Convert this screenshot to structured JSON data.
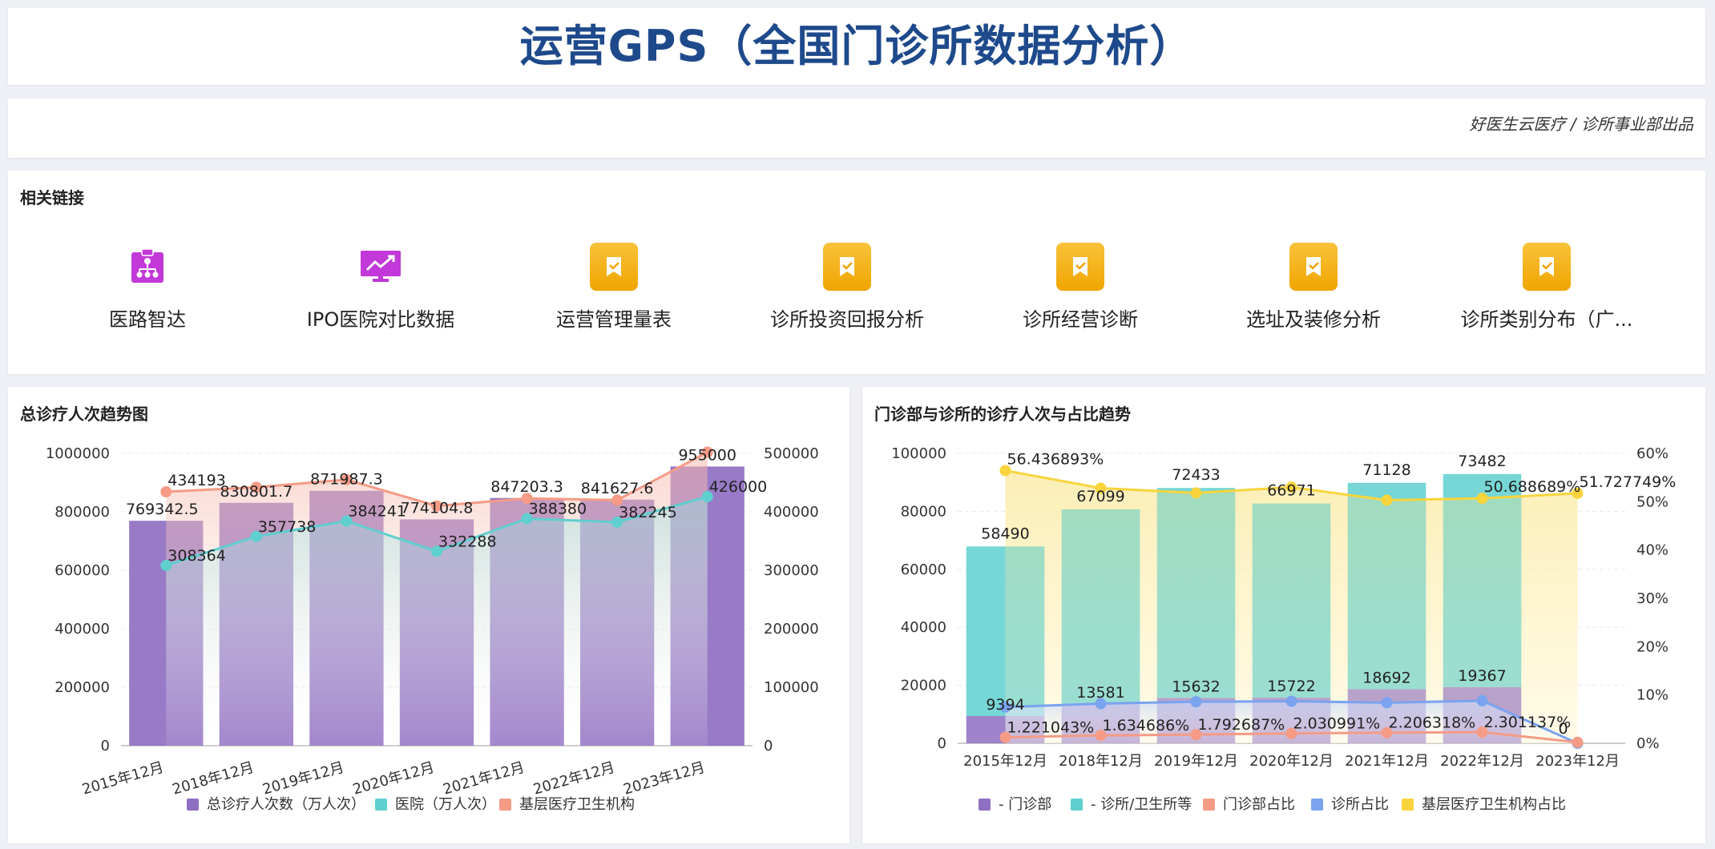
{
  "header": {
    "title": "运营GPS（全国门诊所数据分析）"
  },
  "subheader": {
    "credit": "好医生云医疗 / 诊所事业部出品"
  },
  "links": {
    "title": "相关链接",
    "items": [
      {
        "label": "医路智达",
        "icon": "org-chart-icon",
        "color": "#c238d8"
      },
      {
        "label": "IPO医院对比数据",
        "icon": "trend-monitor-icon",
        "color": "#c238d8"
      },
      {
        "label": "运营管理量表",
        "icon": "bookmark-check-icon",
        "color": "#f0a500"
      },
      {
        "label": "诊所投资回报分析",
        "icon": "bookmark-check-icon",
        "color": "#f0a500"
      },
      {
        "label": "诊所经营诊断",
        "icon": "bookmark-check-icon",
        "color": "#f0a500"
      },
      {
        "label": "选址及装修分析",
        "icon": "bookmark-check-icon",
        "color": "#f0a500"
      },
      {
        "label": "诊所类别分布（广...",
        "icon": "bookmark-check-icon",
        "color": "#f0a500"
      }
    ]
  },
  "chart_data": [
    {
      "type": "bar",
      "title": "总诊疗人次趋势图",
      "categories": [
        "2015年12月",
        "2018年12月",
        "2019年12月",
        "2020年12月",
        "2021年12月",
        "2022年12月",
        "2023年12月"
      ],
      "left_axis": {
        "ylim": [
          0,
          1000000
        ],
        "ticks": [
          "0",
          "200000",
          "400000",
          "600000",
          "800000",
          "1000000"
        ]
      },
      "right_axis": {
        "ylim": [
          0,
          500000
        ],
        "ticks": [
          "0",
          "100000",
          "200000",
          "300000",
          "400000",
          "500000"
        ]
      },
      "series": [
        {
          "name": "总诊疗人次数（万人次）",
          "kind": "bar",
          "axis": "left",
          "color": "#8f6fc2",
          "values": [
            769342.5,
            830801.7,
            871987.3,
            774104.8,
            847203.3,
            841627.6,
            955000
          ],
          "labels": [
            "769342.5",
            "830801.7",
            "871987.3",
            "774104.8",
            "847203.3",
            "841627.6",
            "955000"
          ]
        },
        {
          "name": "医院（万人次）",
          "kind": "line",
          "axis": "right",
          "color": "#5fcfcf",
          "values": [
            308364,
            357738,
            384241,
            332288,
            388380,
            382245,
            426000
          ],
          "labels": [
            "308364",
            "357738",
            "384241",
            "332288",
            "388380",
            "382245",
            "426000"
          ]
        },
        {
          "name": "基层医疗卫生机构",
          "kind": "line",
          "axis": "right",
          "color": "#f59b86",
          "values": [
            434193,
            442000,
            455000,
            410000,
            423000,
            420000,
            502000
          ],
          "labels": [
            "434193",
            "",
            "",
            "",
            "",
            "",
            ""
          ]
        }
      ],
      "legend": "bottom"
    },
    {
      "type": "bar",
      "title": "门诊部与诊所的诊疗人次与占比趋势",
      "categories": [
        "2015年12月",
        "2018年12月",
        "2019年12月",
        "2020年12月",
        "2021年12月",
        "2022年12月",
        "2023年12月"
      ],
      "left_axis": {
        "ylim": [
          0,
          100000
        ],
        "ticks": [
          "0",
          "20000",
          "40000",
          "60000",
          "80000",
          "100000"
        ]
      },
      "right_axis": {
        "ylim": [
          0,
          60
        ],
        "ticks": [
          "0%",
          "10%",
          "20%",
          "30%",
          "40%",
          "50%",
          "60%"
        ]
      },
      "series": [
        {
          "name": "- 门诊部",
          "kind": "stack",
          "axis": "left",
          "color": "#8f6fc2",
          "values": [
            9394,
            13581,
            15632,
            15722,
            18692,
            19367,
            0
          ],
          "labels": [
            "9394",
            "13581",
            "15632",
            "15722",
            "18692",
            "19367",
            ""
          ]
        },
        {
          "name": "- 诊所/卫生所等",
          "kind": "stack",
          "axis": "left",
          "color": "#5fcfcf",
          "values": [
            58490,
            67099,
            72433,
            66971,
            71128,
            73482,
            0
          ],
          "labels": [
            "58490",
            "67099",
            "72433",
            "66971",
            "71128",
            "73482",
            ""
          ]
        },
        {
          "name": "门诊部占比",
          "kind": "line",
          "axis": "right",
          "color": "#f59b86",
          "values": [
            1.221043,
            1.634686,
            1.792687,
            2.030991,
            2.206318,
            2.301137,
            0.2
          ],
          "labels": [
            "1.221043%",
            "1.634686%",
            "1.792687%",
            "2.030991%",
            "2.206318%",
            "2.301137%",
            ""
          ]
        },
        {
          "name": "诊所占比",
          "kind": "line",
          "axis": "right",
          "color": "#7aa3f0",
          "values": [
            7.5,
            8.2,
            8.6,
            8.7,
            8.4,
            8.8,
            0
          ],
          "labels": [
            "",
            "",
            "",
            "",
            "",
            "",
            "0"
          ]
        },
        {
          "name": "基层医疗卫生机构占比",
          "kind": "line",
          "axis": "right",
          "color": "#f9d43c",
          "values": [
            56.436893,
            52.8,
            51.8,
            53.0,
            50.3,
            50.688689,
            51.727749
          ],
          "labels": [
            "56.436893%",
            "",
            "",
            "",
            "",
            "50.688689%",
            "51.727749%"
          ]
        }
      ],
      "legend": "bottom"
    }
  ]
}
